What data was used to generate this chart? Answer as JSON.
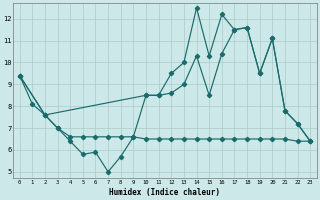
{
  "xlabel": "Humidex (Indice chaleur)",
  "bg_color": "#cce8e8",
  "line_color": "#1a6b6b",
  "grid_color": "#aacccc",
  "xlim": [
    -0.5,
    23.5
  ],
  "ylim": [
    4.7,
    12.7
  ],
  "yticks": [
    5,
    6,
    7,
    8,
    9,
    10,
    11,
    12
  ],
  "xticks": [
    0,
    1,
    2,
    3,
    4,
    5,
    6,
    7,
    8,
    9,
    10,
    11,
    12,
    13,
    14,
    15,
    16,
    17,
    18,
    19,
    20,
    21,
    22,
    23
  ],
  "line1_x": [
    0,
    1,
    2,
    3,
    4,
    5,
    6,
    7,
    8,
    9,
    10,
    11,
    12,
    13,
    14,
    15,
    16,
    17,
    18,
    19,
    20,
    21,
    22,
    23
  ],
  "line1_y": [
    9.4,
    8.1,
    7.6,
    7.0,
    6.4,
    5.8,
    5.9,
    5.0,
    5.7,
    6.6,
    8.5,
    8.5,
    9.5,
    10.0,
    12.5,
    10.3,
    12.2,
    11.5,
    11.6,
    9.5,
    11.1,
    7.8,
    7.2,
    6.4
  ],
  "line2_x": [
    0,
    2,
    3,
    4,
    5,
    6,
    7,
    8,
    9,
    10,
    11,
    12,
    13,
    14,
    15,
    16,
    17,
    18,
    19,
    20,
    21,
    22,
    23
  ],
  "line2_y": [
    9.4,
    7.6,
    7.0,
    6.6,
    6.6,
    6.6,
    6.6,
    6.6,
    6.6,
    6.5,
    6.5,
    6.5,
    6.5,
    6.5,
    6.5,
    6.5,
    6.5,
    6.5,
    6.5,
    6.5,
    6.5,
    6.4,
    6.4
  ],
  "line3_x": [
    0,
    2,
    10,
    11,
    12,
    13,
    14,
    15,
    16,
    17,
    18,
    19,
    20,
    21,
    22,
    23
  ],
  "line3_y": [
    9.4,
    7.6,
    8.5,
    8.5,
    8.6,
    9.0,
    10.3,
    8.5,
    10.4,
    11.5,
    11.6,
    9.5,
    11.1,
    7.8,
    7.2,
    6.4
  ]
}
